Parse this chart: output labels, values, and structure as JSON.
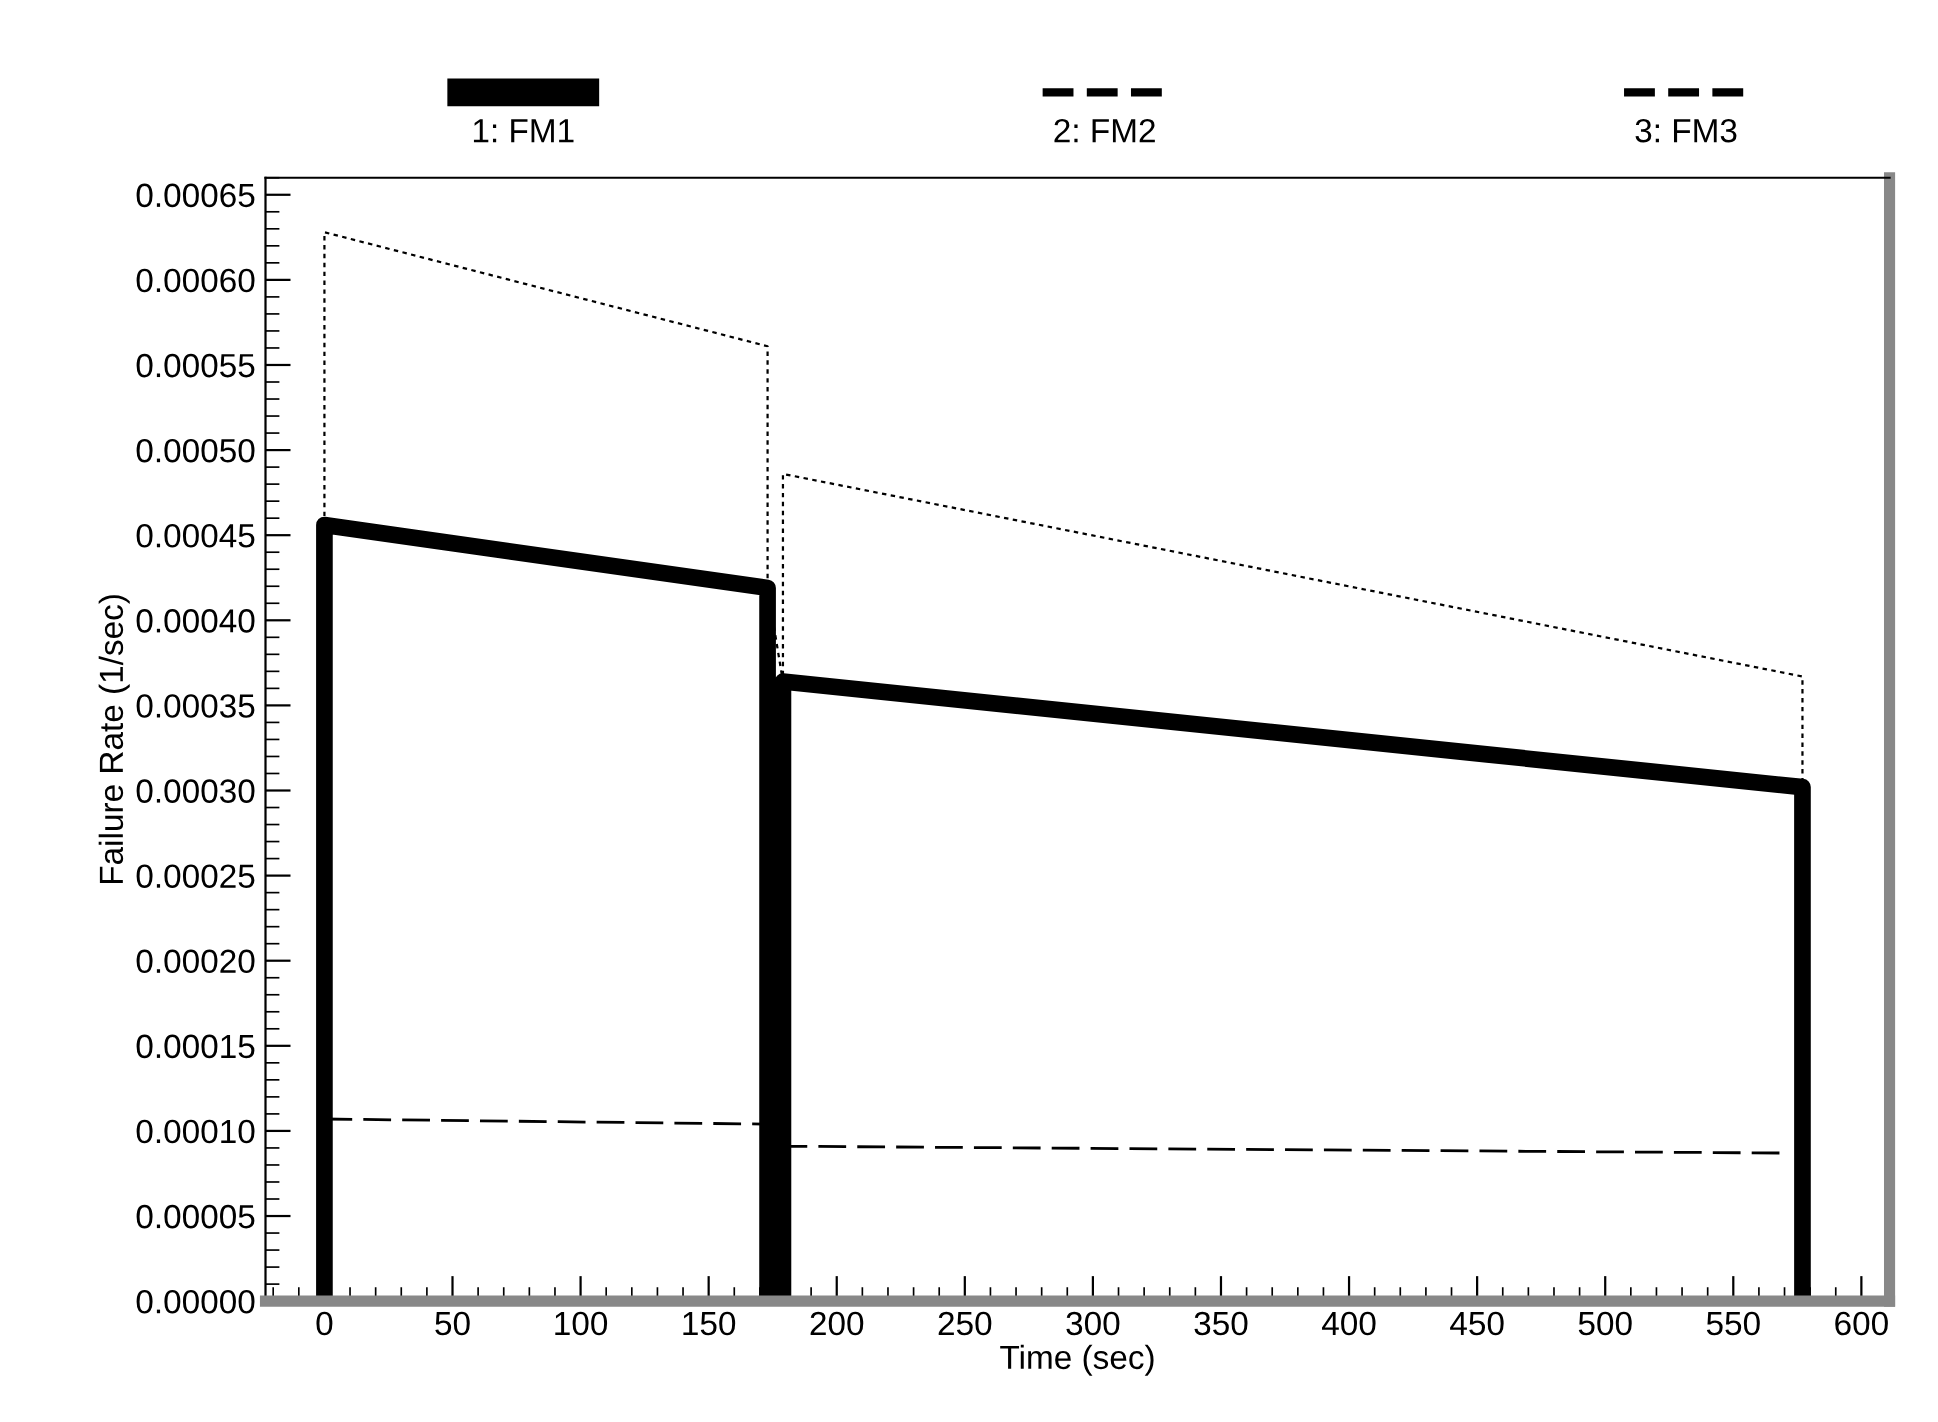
{
  "chart_data": {
    "type": "line",
    "xlabel": "Time (sec)",
    "ylabel": "Failure Rate (1/sec)",
    "xlim": [
      -23,
      611
    ],
    "ylim": [
      0,
      0.00066
    ],
    "xticks": [
      0,
      50,
      100,
      150,
      200,
      250,
      300,
      350,
      400,
      450,
      500,
      550,
      600
    ],
    "yticks": [
      {
        "value": 0,
        "label": "0.00000"
      },
      {
        "value": 5e-05,
        "label": "0.00005"
      },
      {
        "value": 0.0001,
        "label": "0.00010"
      },
      {
        "value": 0.00015,
        "label": "0.00015"
      },
      {
        "value": 0.0002,
        "label": "0.00020"
      },
      {
        "value": 0.00025,
        "label": "0.00025"
      },
      {
        "value": 0.0003,
        "label": "0.00030"
      },
      {
        "value": 0.00035,
        "label": "0.00035"
      },
      {
        "value": 0.0004,
        "label": "0.00040"
      },
      {
        "value": 0.00045,
        "label": "0.00045"
      },
      {
        "value": 0.0005,
        "label": "0.00050"
      },
      {
        "value": 0.00055,
        "label": "0.00055"
      },
      {
        "value": 0.0006,
        "label": "0.00060"
      },
      {
        "value": 0.00065,
        "label": "0.00065"
      }
    ],
    "grid": false,
    "legend": "top",
    "marker": "none",
    "series": [
      {
        "name": "1: FM1",
        "color": "#000000",
        "line_style": "solid",
        "x": [
          0,
          0,
          173,
          173,
          179,
          179,
          577,
          577
        ],
        "values": [
          0,
          0.000456,
          0.000419,
          0,
          0,
          0.000364,
          0.000302,
          0
        ]
      },
      {
        "name": "2: FM2",
        "color": "#000000",
        "line_style": "dotted",
        "x": [
          0,
          0,
          173,
          173,
          179,
          179,
          577,
          577
        ],
        "values": [
          0.000456,
          0.000628,
          0.000561,
          0.000419,
          0.000364,
          0.000486,
          0.000367,
          0.000302
        ]
      },
      {
        "name": "3: FM3",
        "color": "#000000",
        "line_style": "dashed",
        "x": [
          0,
          173,
          179,
          570
        ],
        "values": [
          0.000107,
          0.000104,
          9.1e-05,
          8.7e-05
        ]
      }
    ]
  }
}
